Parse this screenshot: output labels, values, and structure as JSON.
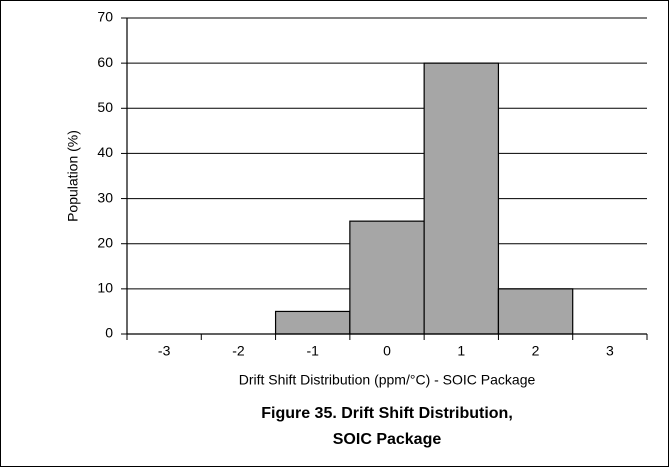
{
  "chart_data": {
    "type": "bar",
    "title": [
      "Figure 35. Drift Shift Distribution,",
      "SOIC Package"
    ],
    "xlabel": "Drift Shift Distribution (ppm/°C) - SOIC Package",
    "ylabel": "Population (%)",
    "categories": [
      "-3",
      "-2",
      "-1",
      "0",
      "1",
      "2",
      "3"
    ],
    "values": [
      0,
      0,
      5,
      25,
      60,
      10,
      0
    ],
    "color": "#a6a6a6",
    "ylim": [
      0,
      70
    ],
    "yticks": [
      0,
      10,
      20,
      30,
      40,
      50,
      60,
      70
    ],
    "grid": true
  }
}
